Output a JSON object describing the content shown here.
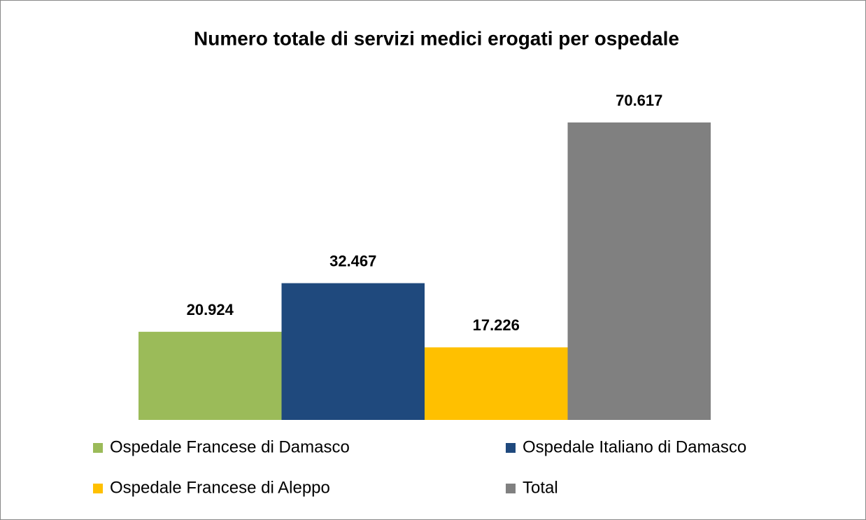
{
  "chart_data": {
    "type": "bar",
    "title": "Numero totale di servizi medici erogati per ospedale",
    "series": [
      {
        "name": "Ospedale Francese di Damasco",
        "color": "#9bbb59",
        "values": [
          20924
        ],
        "value_labels": [
          "20.924"
        ]
      },
      {
        "name": "Ospedale Italiano di Damasco",
        "color": "#1f497d",
        "values": [
          32467
        ],
        "value_labels": [
          "32.467"
        ]
      },
      {
        "name": "Ospedale Francese di Aleppo",
        "color": "#ffc000",
        "values": [
          17226
        ],
        "value_labels": [
          "17.226"
        ]
      },
      {
        "name": "Total",
        "color": "#808080",
        "values": [
          70617
        ],
        "value_labels": [
          "70.617"
        ]
      }
    ],
    "legend": "bottom"
  }
}
